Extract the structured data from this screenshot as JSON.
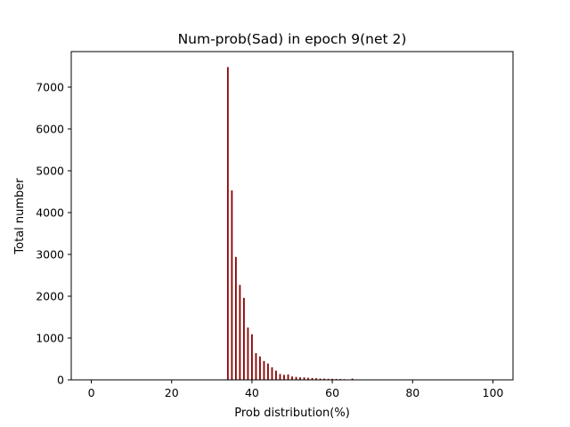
{
  "chart_data": {
    "type": "bar",
    "title": "Num-prob(Sad) in epoch 9(net 2)",
    "xlabel": "Prob distribution(%)",
    "ylabel": "Total number",
    "xlim": [
      -5,
      105
    ],
    "ylim": [
      0,
      7850
    ],
    "xticks": [
      0,
      20,
      40,
      60,
      80,
      100
    ],
    "yticks": [
      0,
      1000,
      2000,
      3000,
      4000,
      5000,
      6000,
      7000
    ],
    "bar_color": "#8b0000",
    "bar_width": 0.4,
    "grid": false,
    "legend": "none",
    "x": [
      34,
      35,
      36,
      37,
      38,
      39,
      40,
      41,
      42,
      43,
      44,
      45,
      46,
      47,
      48,
      49,
      50,
      51,
      52,
      53,
      54,
      55,
      56,
      57,
      58,
      59,
      60,
      61,
      62,
      63,
      64,
      65
    ],
    "values": [
      7480,
      4530,
      2940,
      2270,
      1960,
      1250,
      1090,
      640,
      560,
      450,
      390,
      300,
      220,
      140,
      120,
      130,
      80,
      70,
      60,
      60,
      50,
      45,
      40,
      30,
      30,
      25,
      25,
      20,
      20,
      15,
      10,
      30
    ]
  }
}
